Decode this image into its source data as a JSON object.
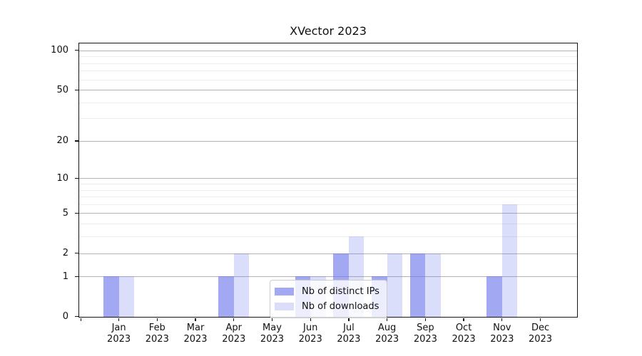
{
  "chart_data": {
    "type": "bar",
    "title": "XVector 2023",
    "x_categories": [
      {
        "month": "Jan",
        "year": "2023"
      },
      {
        "month": "Feb",
        "year": "2023"
      },
      {
        "month": "Mar",
        "year": "2023"
      },
      {
        "month": "Apr",
        "year": "2023"
      },
      {
        "month": "May",
        "year": "2023"
      },
      {
        "month": "Jun",
        "year": "2023"
      },
      {
        "month": "Jul",
        "year": "2023"
      },
      {
        "month": "Aug",
        "year": "2023"
      },
      {
        "month": "Sep",
        "year": "2023"
      },
      {
        "month": "Oct",
        "year": "2023"
      },
      {
        "month": "Nov",
        "year": "2023"
      },
      {
        "month": "Dec",
        "year": "2023"
      }
    ],
    "series": [
      {
        "name": "Nb of distinct IPs",
        "color": "rgba(105,116,234,0.62)",
        "values": [
          1,
          0,
          0,
          1,
          0,
          1,
          2,
          1,
          2,
          0,
          1,
          0
        ]
      },
      {
        "name": "Nb of downloads",
        "color": "rgba(105,116,234,0.24)",
        "values": [
          1,
          0,
          0,
          2,
          0,
          1,
          3,
          2,
          2,
          0,
          6,
          0
        ]
      }
    ],
    "y_axis": {
      "scale": "log1p",
      "ticks": [
        0,
        1,
        2,
        5,
        10,
        20,
        50,
        100
      ],
      "tick_labels": [
        "0",
        "1",
        "2",
        "5",
        "10",
        "20",
        "50",
        "100"
      ],
      "minor_ticks": [
        3,
        4,
        6,
        7,
        8,
        9,
        30,
        40,
        60,
        70,
        80,
        90
      ],
      "ylim": [
        0,
        114
      ]
    },
    "grid": {
      "major_color": "#b3b3b3",
      "minor_color": "rgba(0,0,0,0.07)"
    },
    "legend": {
      "position": "lower center",
      "entries": [
        "Nb of distinct IPs",
        "Nb of downloads"
      ]
    }
  }
}
